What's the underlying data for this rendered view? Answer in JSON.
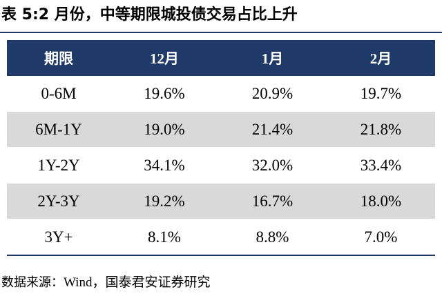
{
  "title": "表 5:2 月份，中等期限城投债交易占比上升",
  "table": {
    "headers": [
      "期限",
      "12月",
      "1月",
      "2月"
    ],
    "rows": [
      [
        "0-6M",
        "19.6%",
        "20.9%",
        "19.7%"
      ],
      [
        "6M-1Y",
        "19.0%",
        "21.4%",
        "21.8%"
      ],
      [
        "1Y-2Y",
        "34.1%",
        "32.0%",
        "33.4%"
      ],
      [
        "2Y-3Y",
        "19.2%",
        "16.7%",
        "18.0%"
      ],
      [
        "3Y+",
        "8.1%",
        "8.8%",
        "7.0%"
      ]
    ]
  },
  "source": {
    "label": "数据来源：",
    "value": "Wind，国泰君安证券研究"
  }
}
